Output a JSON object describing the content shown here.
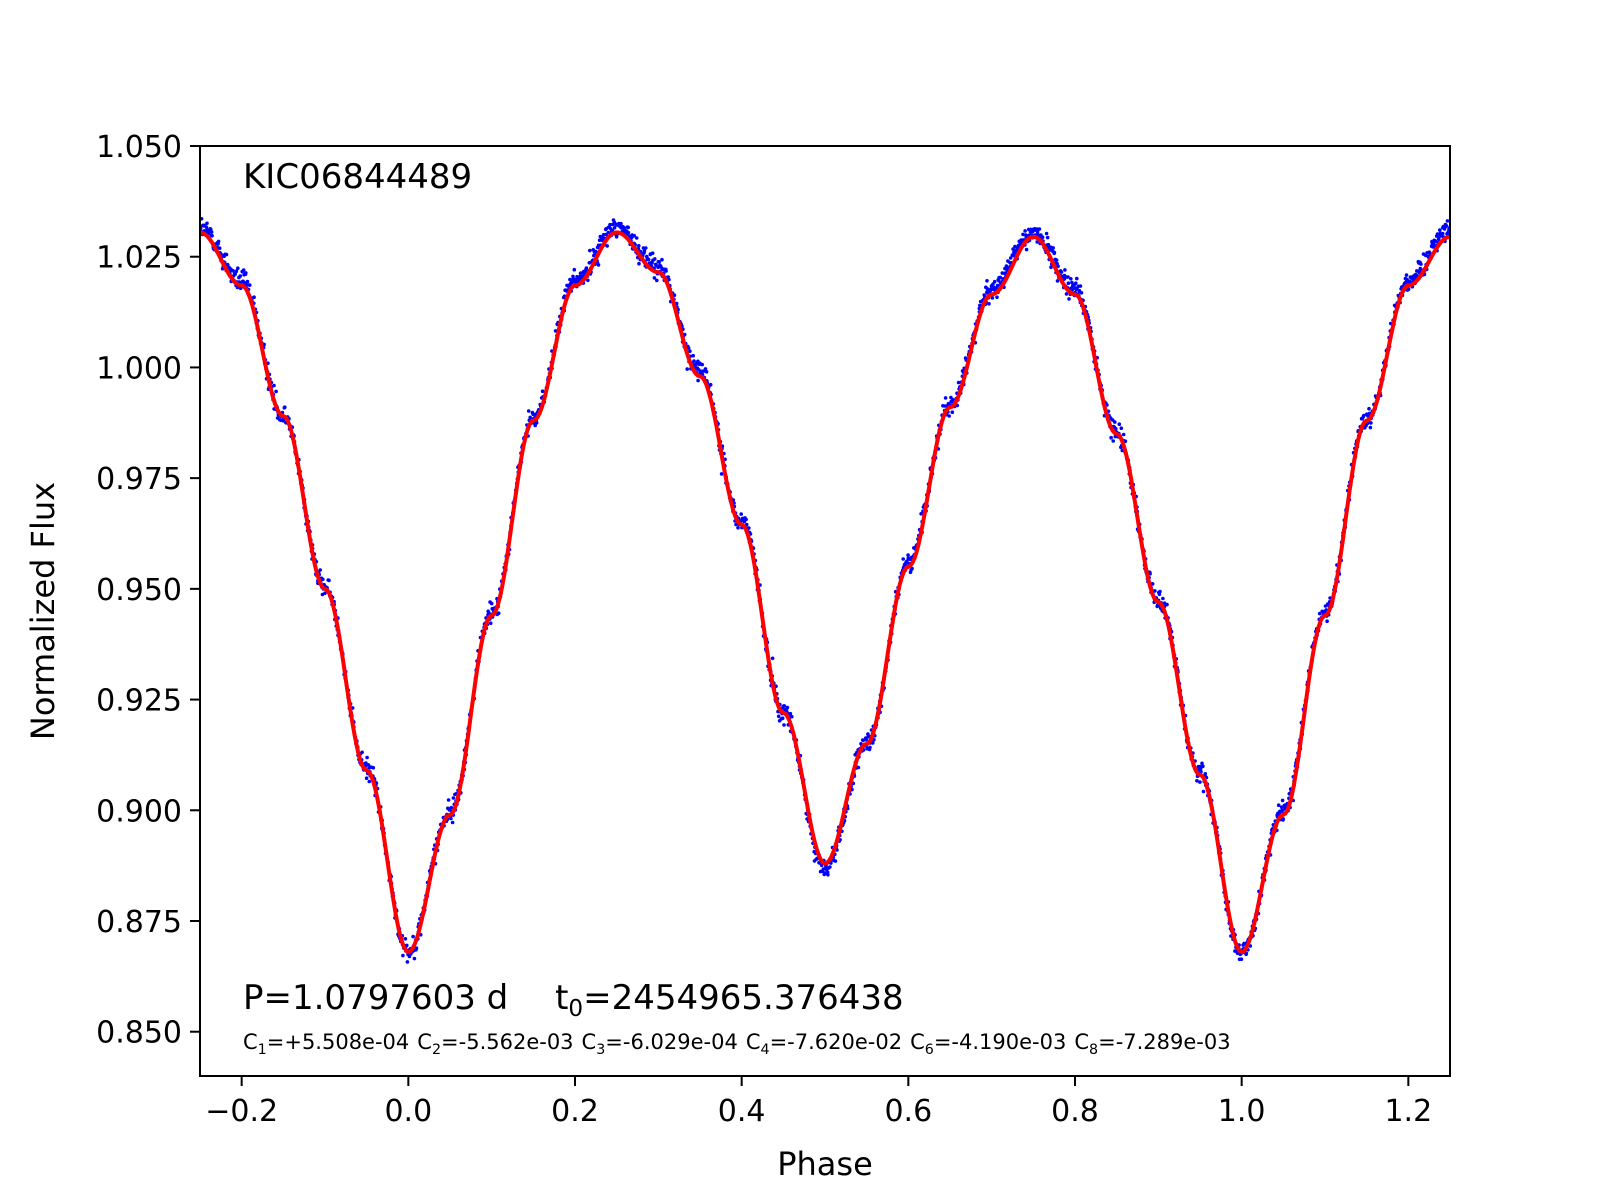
{
  "chart_data": {
    "type": "scatter",
    "title": "",
    "xlabel": "Phase",
    "ylabel": "Normalized Flux",
    "xlim": [
      -0.25,
      1.25
    ],
    "ylim": [
      0.84,
      1.05
    ],
    "x_ticks": [
      -0.2,
      0.0,
      0.2,
      0.4,
      0.6,
      0.8,
      1.0,
      1.2
    ],
    "x_tick_labels": [
      "−0.2",
      "0.0",
      "0.2",
      "0.4",
      "0.6",
      "0.8",
      "1.0",
      "1.2"
    ],
    "y_ticks": [
      0.85,
      0.875,
      0.9,
      0.925,
      0.95,
      0.975,
      1.0,
      1.025,
      1.05
    ],
    "y_tick_labels": [
      "0.850",
      "0.875",
      "0.900",
      "0.925",
      "0.950",
      "0.975",
      "1.000",
      "1.025",
      "1.050"
    ],
    "grid": false,
    "legend": "none",
    "star_label": "KIC06844489",
    "period_text": "P=1.0797603 d",
    "t0": {
      "symbol": "t",
      "subscript": "0",
      "value": "=2454965.376438"
    },
    "coefficients": [
      {
        "symbol": "C",
        "subscript": "1",
        "value": "=+5.508e-04"
      },
      {
        "symbol": "C",
        "subscript": "2",
        "value": "=-5.562e-03"
      },
      {
        "symbol": "C",
        "subscript": "3",
        "value": "=-6.029e-04"
      },
      {
        "symbol": "C",
        "subscript": "4",
        "value": "=-7.620e-02"
      },
      {
        "symbol": "C",
        "subscript": "6",
        "value": "=-4.190e-03"
      },
      {
        "symbol": "C",
        "subscript": "8",
        "value": "=-7.289e-03"
      }
    ],
    "series": [
      {
        "kind": "points",
        "color": "#0000ff",
        "x": [
          -0.25,
          -0.2,
          -0.15,
          -0.1,
          -0.05,
          0.0,
          0.05,
          0.1,
          0.15,
          0.2,
          0.25,
          0.3,
          0.35,
          0.4,
          0.45,
          0.5,
          0.55,
          0.6,
          0.65,
          0.7,
          0.75,
          0.8,
          0.85,
          0.9,
          0.95,
          1.0,
          1.05,
          1.1,
          1.15,
          1.2,
          1.25
        ],
        "y": [
          1.0315,
          1.0195,
          0.9895,
          0.9505,
          0.9095,
          0.868,
          0.8995,
          0.9445,
          0.9885,
          1.0195,
          1.0315,
          1.0225,
          0.999,
          0.9655,
          0.922,
          0.8865,
          0.9145,
          0.9555,
          0.9915,
          1.0175,
          1.0305,
          1.0175,
          0.9855,
          0.9475,
          0.9085,
          0.868,
          0.8995,
          0.9445,
          0.9885,
          1.0195,
          1.0315
        ]
      },
      {
        "kind": "model",
        "color": "#ff0000",
        "x": [
          -0.25,
          -0.2,
          -0.15,
          -0.1,
          -0.05,
          0.0,
          0.05,
          0.1,
          0.15,
          0.2,
          0.25,
          0.3,
          0.35,
          0.4,
          0.45,
          0.5,
          0.55,
          0.6,
          0.65,
          0.7,
          0.75,
          0.8,
          0.85,
          0.9,
          0.95,
          1.0,
          1.05,
          1.1,
          1.15,
          1.2,
          1.25
        ],
        "y": [
          1.0305,
          1.0185,
          0.989,
          0.95,
          0.909,
          0.868,
          0.899,
          0.944,
          0.988,
          1.0185,
          1.0305,
          1.0215,
          0.998,
          0.9645,
          0.922,
          0.888,
          0.915,
          0.955,
          0.991,
          1.0165,
          1.0295,
          1.0165,
          0.985,
          0.947,
          0.908,
          0.868,
          0.899,
          0.944,
          0.988,
          1.0185,
          1.0295
        ]
      }
    ]
  }
}
